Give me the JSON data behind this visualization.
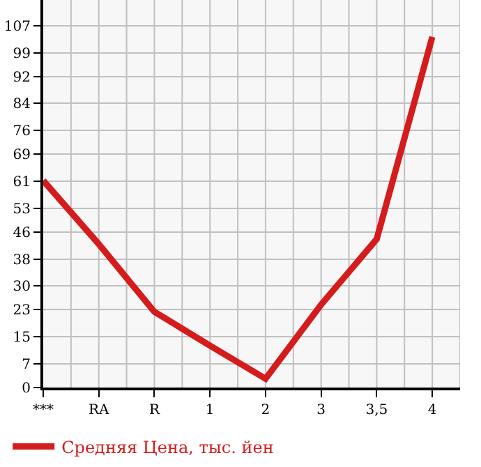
{
  "chart_data": {
    "type": "line",
    "categories": [
      "***",
      "RA",
      "R",
      "1",
      "2",
      "3",
      "3,5",
      "4"
    ],
    "series": [
      {
        "name": "Средняя Цена, тыс. йен",
        "color": "#d41c1c",
        "values": [
          61.2,
          42.4,
          22.4,
          12.4,
          2.6,
          24.5,
          43.9,
          103.7
        ]
      }
    ],
    "ylim": [
      0,
      114.6
    ],
    "yticks": [
      0,
      7,
      15,
      23,
      30,
      38,
      46,
      53,
      61,
      69,
      76,
      84,
      92,
      99,
      107
    ],
    "grid": true,
    "legend": "bottom",
    "marker": "none",
    "line_style": "solid"
  }
}
